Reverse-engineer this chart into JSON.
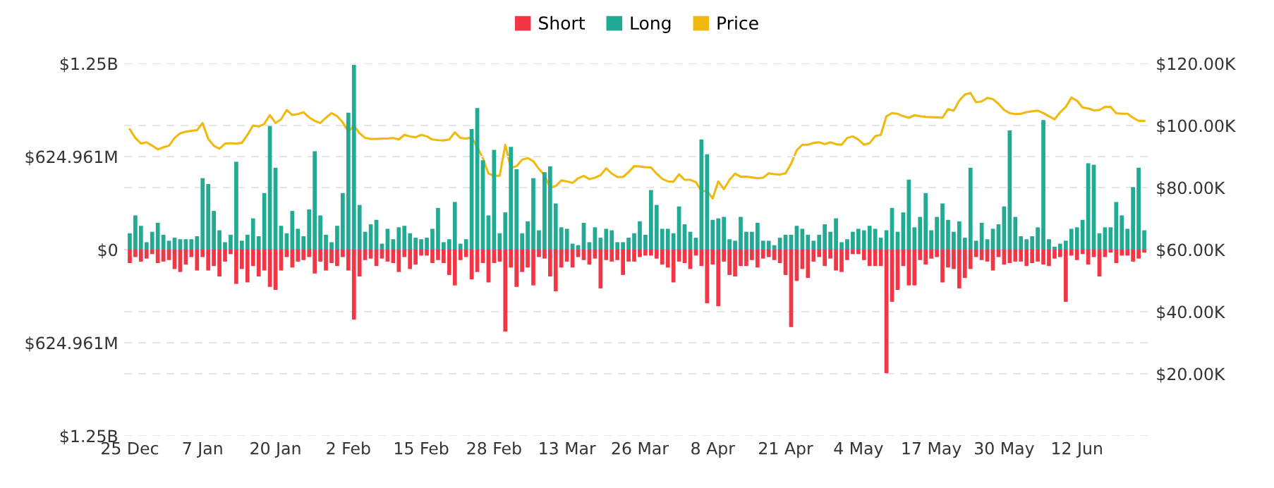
{
  "chart_data": {
    "type": "bar",
    "stacked": true,
    "categories": [
      "25 Dec",
      null,
      null,
      null,
      null,
      null,
      null,
      null,
      null,
      null,
      null,
      null,
      null,
      "7 Jan",
      null,
      null,
      null,
      null,
      null,
      null,
      null,
      null,
      null,
      null,
      null,
      null,
      "20 Jan",
      null,
      null,
      null,
      null,
      null,
      null,
      null,
      null,
      null,
      null,
      null,
      null,
      "2 Feb",
      null,
      null,
      null,
      null,
      null,
      null,
      null,
      null,
      null,
      null,
      null,
      null,
      "15 Feb",
      null,
      null,
      null,
      null,
      null,
      null,
      null,
      null,
      null,
      null,
      null,
      null,
      "28 Feb",
      null,
      null,
      null,
      null,
      null,
      null,
      null,
      null,
      null,
      null,
      null,
      null,
      "13 Mar",
      null,
      null,
      null,
      null,
      null,
      null,
      null,
      null,
      null,
      null,
      null,
      null,
      "26 Mar",
      null,
      null,
      null,
      null,
      null,
      null,
      null,
      null,
      null,
      null,
      null,
      null,
      "8 Apr",
      null,
      null,
      null,
      null,
      null,
      null,
      null,
      null,
      null,
      null,
      null,
      null,
      "21 Apr",
      null,
      null,
      null,
      null,
      null,
      null,
      null,
      null,
      null,
      null,
      null,
      null,
      "4 May",
      null,
      null,
      null,
      null,
      null,
      null,
      null,
      null,
      null,
      null,
      null,
      null,
      "17 May",
      null,
      null,
      null,
      null,
      null,
      null,
      null,
      null,
      null,
      null,
      null,
      null,
      "30 May",
      null,
      null,
      null,
      null,
      null,
      null,
      null,
      null,
      null,
      null,
      null,
      null,
      "12 Jun",
      null,
      null,
      null,
      null,
      null,
      null,
      null,
      null,
      null,
      null,
      null,
      null
    ],
    "series": [
      {
        "name": "Short",
        "color": "#f23645",
        "values": [
          -90000000.0,
          -50000000.0,
          -80000000.0,
          -60000000.0,
          -30000000.0,
          -90000000.0,
          -80000000.0,
          -70000000.0,
          -130000000.0,
          -150000000.0,
          -100000000.0,
          -50000000.0,
          -140000000.0,
          -50000000.0,
          -140000000.0,
          -110000000.0,
          -180000000.0,
          -80000000.0,
          -30000000.0,
          -230000000.0,
          -130000000.0,
          -220000000.0,
          -110000000.0,
          -180000000.0,
          -140000000.0,
          -250000000.0,
          -270000000.0,
          -140000000.0,
          -50000000.0,
          -120000000.0,
          -80000000.0,
          -70000000.0,
          -50000000.0,
          -160000000.0,
          -80000000.0,
          -140000000.0,
          -90000000.0,
          -110000000.0,
          -50000000.0,
          -140000000.0,
          -470000000.0,
          -180000000.0,
          -70000000.0,
          -60000000.0,
          -110000000.0,
          -60000000.0,
          -80000000.0,
          -90000000.0,
          -150000000.0,
          -50000000.0,
          -130000000.0,
          -100000000.0,
          -40000000.0,
          -40000000.0,
          -90000000.0,
          -70000000.0,
          -90000000.0,
          -170000000.0,
          -240000000.0,
          -70000000.0,
          -50000000.0,
          -200000000.0,
          -150000000.0,
          -90000000.0,
          -220000000.0,
          -90000000.0,
          -80000000.0,
          -550000000.0,
          -120000000.0,
          -250000000.0,
          -150000000.0,
          -120000000.0,
          -240000000.0,
          -50000000.0,
          -60000000.0,
          -180000000.0,
          -280000000.0,
          -120000000.0,
          -80000000.0,
          -120000000.0,
          -50000000.0,
          -70000000.0,
          -100000000.0,
          -60000000.0,
          -260000000.0,
          -70000000.0,
          -80000000.0,
          -70000000.0,
          -170000000.0,
          -80000000.0,
          -80000000.0,
          -50000000.0,
          -40000000.0,
          -40000000.0,
          -60000000.0,
          -100000000.0,
          -120000000.0,
          -220000000.0,
          -80000000.0,
          -90000000.0,
          -130000000.0,
          -40000000.0,
          -110000000.0,
          -360000000.0,
          -100000000.0,
          -380000000.0,
          -80000000.0,
          -170000000.0,
          -180000000.0,
          -110000000.0,
          -110000000.0,
          -70000000.0,
          -120000000.0,
          -60000000.0,
          -50000000.0,
          -70000000.0,
          -90000000.0,
          -170000000.0,
          -520000000.0,
          -210000000.0,
          -130000000.0,
          -190000000.0,
          -80000000.0,
          -50000000.0,
          -110000000.0,
          -60000000.0,
          -140000000.0,
          -150000000.0,
          -70000000.0,
          -30000000.0,
          -30000000.0,
          -70000000.0,
          -110000000.0,
          -110000000.0,
          -110000000.0,
          -830000000.0,
          -350000000.0,
          -270000000.0,
          -110000000.0,
          -240000000.0,
          -240000000.0,
          -70000000.0,
          -100000000.0,
          -60000000.0,
          -50000000.0,
          -220000000.0,
          -120000000.0,
          -130000000.0,
          -260000000.0,
          -190000000.0,
          -130000000.0,
          -50000000.0,
          -70000000.0,
          -80000000.0,
          -140000000.0,
          -50000000.0,
          -100000000.0,
          -90000000.0,
          -80000000.0,
          -80000000.0,
          -110000000.0,
          -90000000.0,
          -80000000.0,
          -100000000.0,
          -110000000.0,
          -60000000.0,
          -50000000.0,
          -350000000.0,
          -40000000.0,
          -70000000.0,
          -30000000.0,
          -100000000.0,
          -50000000.0,
          -180000000.0,
          -50000000.0,
          -20000000.0,
          -90000000.0,
          -40000000.0,
          -40000000.0,
          -80000000.0,
          -60000000.0,
          -20000000.0
        ]
      },
      {
        "name": "Long",
        "color": "#22ab94",
        "values": [
          110000000.0,
          230000000.0,
          160000000.0,
          50000000.0,
          120000000.0,
          180000000.0,
          100000000.0,
          60000000.0,
          80000000.0,
          70000000.0,
          70000000.0,
          70000000.0,
          90000000.0,
          480000000.0,
          440000000.0,
          260000000.0,
          130000000.0,
          50000000.0,
          100000000.0,
          590000000.0,
          60000000.0,
          100000000.0,
          210000000.0,
          90000000.0,
          380000000.0,
          830000000.0,
          550000000.0,
          160000000.0,
          110000000.0,
          260000000.0,
          140000000.0,
          90000000.0,
          270000000.0,
          660000000.0,
          230000000.0,
          100000000.0,
          50000000.0,
          160000000.0,
          380000000.0,
          920000000.0,
          1240000000.0,
          300000000.0,
          120000000.0,
          170000000.0,
          200000000.0,
          40000000.0,
          140000000.0,
          70000000.0,
          150000000.0,
          160000000.0,
          110000000.0,
          80000000.0,
          70000000.0,
          80000000.0,
          140000000.0,
          280000000.0,
          50000000.0,
          70000000.0,
          320000000.0,
          40000000.0,
          70000000.0,
          810000000.0,
          950000000.0,
          600000000.0,
          230000000.0,
          670000000.0,
          110000000.0,
          250000000.0,
          690000000.0,
          540000000.0,
          110000000.0,
          190000000.0,
          480000000.0,
          130000000.0,
          520000000.0,
          560000000.0,
          310000000.0,
          150000000.0,
          140000000.0,
          40000000.0,
          30000000.0,
          180000000.0,
          50000000.0,
          150000000.0,
          80000000.0,
          140000000.0,
          130000000.0,
          50000000.0,
          50000000.0,
          80000000.0,
          110000000.0,
          190000000.0,
          100000000.0,
          400000000.0,
          300000000.0,
          140000000.0,
          140000000.0,
          110000000.0,
          290000000.0,
          170000000.0,
          120000000.0,
          80000000.0,
          740000000.0,
          640000000.0,
          200000000.0,
          210000000.0,
          220000000.0,
          70000000.0,
          60000000.0,
          220000000.0,
          120000000.0,
          120000000.0,
          180000000.0,
          60000000.0,
          60000000.0,
          30000000.0,
          80000000.0,
          100000000.0,
          100000000.0,
          160000000.0,
          140000000.0,
          100000000.0,
          60000000.0,
          100000000.0,
          170000000.0,
          120000000.0,
          210000000.0,
          50000000.0,
          70000000.0,
          120000000.0,
          140000000.0,
          130000000.0,
          160000000.0,
          140000000.0,
          80000000.0,
          130000000.0,
          280000000.0,
          120000000.0,
          250000000.0,
          470000000.0,
          150000000.0,
          220000000.0,
          380000000.0,
          130000000.0,
          220000000.0,
          310000000.0,
          200000000.0,
          120000000.0,
          190000000.0,
          80000000.0,
          550000000.0,
          60000000.0,
          180000000.0,
          70000000.0,
          140000000.0,
          170000000.0,
          290000000.0,
          800000000.0,
          220000000.0,
          90000000.0,
          70000000.0,
          90000000.0,
          150000000.0,
          870000000.0,
          70000000.0,
          20000000.0,
          40000000.0,
          60000000.0,
          140000000.0,
          150000000.0,
          200000000.0,
          580000000.0,
          570000000.0,
          110000000.0,
          150000000.0,
          150000000.0,
          320000000.0,
          230000000.0,
          140000000.0,
          420000000.0,
          550000000.0,
          130000000.0
        ]
      },
      {
        "name": "Price",
        "type": "line",
        "axis": "y2",
        "color": "#f0b90b",
        "values": [
          98.8,
          96,
          94.2,
          94.6,
          93.5,
          92.3,
          93,
          93.5,
          96,
          97.5,
          98,
          98.3,
          98.5,
          100.8,
          95.7,
          93.5,
          92.5,
          94.2,
          94.3,
          94.2,
          94.4,
          97,
          100,
          99.7,
          100.5,
          103.4,
          100.8,
          102,
          105,
          103.4,
          103.7,
          104.3,
          102.6,
          101.5,
          100.8,
          102.5,
          104,
          103,
          101,
          98,
          100,
          97.5,
          96,
          95.7,
          95.7,
          95.8,
          95.8,
          96,
          95.5,
          97,
          96.5,
          96.2,
          97,
          96.5,
          95.5,
          95.3,
          95.2,
          95.5,
          97.8,
          96,
          95.8,
          96.2,
          93,
          89.5,
          84.5,
          83.8,
          83.8,
          93.8,
          86.3,
          86.9,
          89,
          89.5,
          88.5,
          86,
          84,
          80,
          80.5,
          82.3,
          82,
          81.5,
          83,
          83.8,
          82.7,
          83.2,
          84,
          86.2,
          84.5,
          83.4,
          83.4,
          85,
          86.9,
          86.8,
          86.6,
          86.5,
          84.5,
          82.8,
          82,
          81.9,
          84.3,
          82.5,
          82.5,
          81.8,
          78.8,
          79,
          76.5,
          82,
          79.5,
          82.5,
          84.5,
          83.5,
          83.5,
          83.3,
          83,
          83.2,
          84.6,
          84.3,
          84.2,
          84.6,
          87.7,
          92,
          93.8,
          93.8,
          94.4,
          94.6,
          94,
          94.6,
          94,
          93.8,
          96,
          96.5,
          95.5,
          93.8,
          94.3,
          96.6,
          97,
          103,
          104,
          103.8,
          103,
          102.5,
          103.3,
          103,
          102.8,
          102.7,
          102.6,
          102.5,
          105.3,
          104.8,
          108,
          110,
          110.5,
          107.5,
          107.8,
          108.9,
          108.5,
          107,
          105,
          104,
          103.7,
          103.8,
          104.3,
          104.6,
          104.8,
          104,
          103,
          102,
          104.3,
          106,
          109,
          108,
          105.8,
          105.5,
          104.9,
          105,
          106,
          106,
          104,
          103.8,
          103.8,
          102.5,
          101.5,
          101.5
        ]
      }
    ],
    "ylim": [
      -1249922000,
      1249922000
    ],
    "yticks": [
      {
        "value": 1249922000,
        "label": "$1.25B"
      },
      {
        "value": 624961000,
        "label": "$624.961M"
      },
      {
        "value": 0,
        "label": "$0"
      },
      {
        "value": -624961000,
        "label": "$624.961M"
      },
      {
        "value": -1249922000,
        "label": "$1.25B"
      }
    ],
    "y2lim": [
      0,
      120
    ],
    "y2ticks": [
      {
        "value": 20,
        "label": "$20.00K"
      },
      {
        "value": 40,
        "label": "$40.00K"
      },
      {
        "value": 60,
        "label": "$60.00K"
      },
      {
        "value": 80,
        "label": "$80.00K"
      },
      {
        "value": 100,
        "label": "$100.00K"
      },
      {
        "value": 120,
        "label": "$120.00K"
      }
    ],
    "grid": "y",
    "legend": "top",
    "marker": "none",
    "line_style": "solid"
  }
}
